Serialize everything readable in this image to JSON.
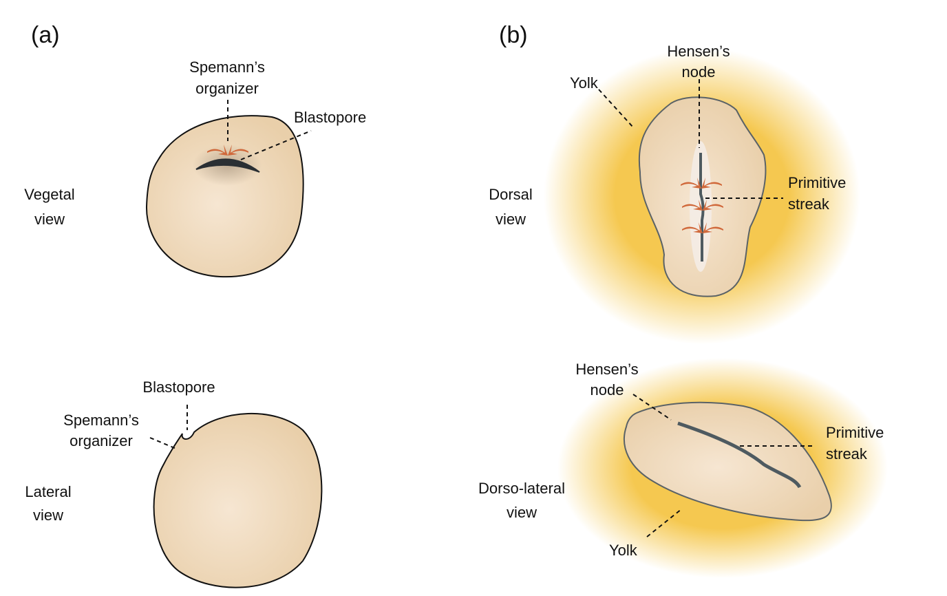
{
  "panels": {
    "a": "(a)",
    "b": "(b)"
  },
  "colors": {
    "embryo": "#ecd3b0",
    "yolk": "#f5c850",
    "arrow": "#d0683a",
    "streak": "#4e5a60"
  },
  "vegetal": {
    "view": [
      "Vegetal",
      "view"
    ],
    "organizer": [
      "Spemann’s",
      "organizer"
    ],
    "blastopore": "Blastopore"
  },
  "lateral": {
    "view": [
      "Lateral",
      "view"
    ],
    "organizer": [
      "Spemann’s",
      "organizer"
    ],
    "blastopore": "Blastopore"
  },
  "dorsal": {
    "view": [
      "Dorsal",
      "view"
    ],
    "node": [
      "Hensen’s",
      "node"
    ],
    "yolk": "Yolk",
    "streak": [
      "Primitive",
      "streak"
    ]
  },
  "dorsolateral": {
    "view": [
      "Dorso-lateral",
      "view"
    ],
    "node": [
      "Hensen’s",
      "node"
    ],
    "yolk": "Yolk",
    "streak": [
      "Primitive",
      "streak"
    ]
  }
}
